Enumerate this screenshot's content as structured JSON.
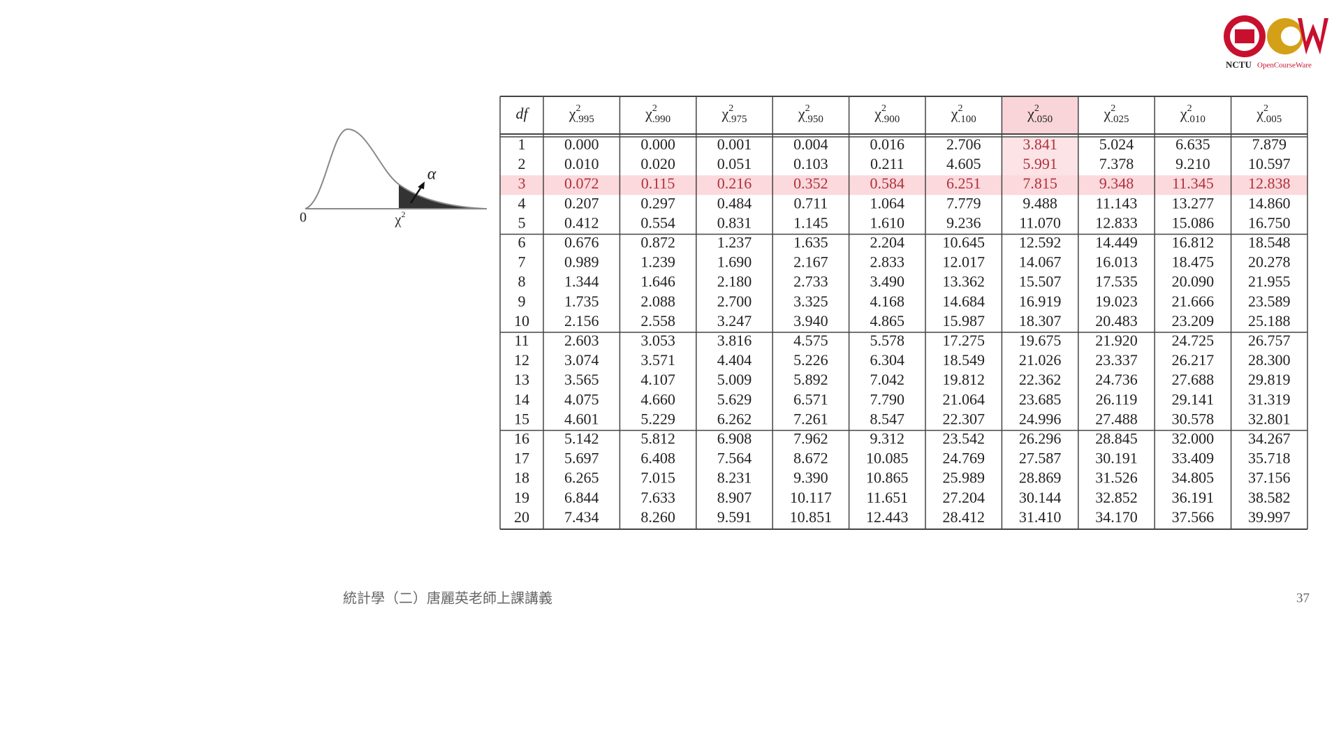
{
  "logo": {
    "institution": "NCTU",
    "program": "OpenCourseWare"
  },
  "figure": {
    "origin_label": "0",
    "chi_symbol": "χ",
    "chi_power": "2",
    "alpha_label": "α"
  },
  "table": {
    "df_header": "df",
    "chi_symbol": "χ",
    "chi_power": "2",
    "alphas": [
      ".995",
      ".990",
      ".975",
      ".950",
      ".900",
      ".100",
      ".050",
      ".025",
      ".010",
      ".005"
    ],
    "rows": [
      [
        "1",
        "0.000",
        "0.000",
        "0.001",
        "0.004",
        "0.016",
        "2.706",
        "3.841",
        "5.024",
        "6.635",
        "7.879"
      ],
      [
        "2",
        "0.010",
        "0.020",
        "0.051",
        "0.103",
        "0.211",
        "4.605",
        "5.991",
        "7.378",
        "9.210",
        "10.597"
      ],
      [
        "3",
        "0.072",
        "0.115",
        "0.216",
        "0.352",
        "0.584",
        "6.251",
        "7.815",
        "9.348",
        "11.345",
        "12.838"
      ],
      [
        "4",
        "0.207",
        "0.297",
        "0.484",
        "0.711",
        "1.064",
        "7.779",
        "9.488",
        "11.143",
        "13.277",
        "14.860"
      ],
      [
        "5",
        "0.412",
        "0.554",
        "0.831",
        "1.145",
        "1.610",
        "9.236",
        "11.070",
        "12.833",
        "15.086",
        "16.750"
      ],
      [
        "6",
        "0.676",
        "0.872",
        "1.237",
        "1.635",
        "2.204",
        "10.645",
        "12.592",
        "14.449",
        "16.812",
        "18.548"
      ],
      [
        "7",
        "0.989",
        "1.239",
        "1.690",
        "2.167",
        "2.833",
        "12.017",
        "14.067",
        "16.013",
        "18.475",
        "20.278"
      ],
      [
        "8",
        "1.344",
        "1.646",
        "2.180",
        "2.733",
        "3.490",
        "13.362",
        "15.507",
        "17.535",
        "20.090",
        "21.955"
      ],
      [
        "9",
        "1.735",
        "2.088",
        "2.700",
        "3.325",
        "4.168",
        "14.684",
        "16.919",
        "19.023",
        "21.666",
        "23.589"
      ],
      [
        "10",
        "2.156",
        "2.558",
        "3.247",
        "3.940",
        "4.865",
        "15.987",
        "18.307",
        "20.483",
        "23.209",
        "25.188"
      ],
      [
        "11",
        "2.603",
        "3.053",
        "3.816",
        "4.575",
        "5.578",
        "17.275",
        "19.675",
        "21.920",
        "24.725",
        "26.757"
      ],
      [
        "12",
        "3.074",
        "3.571",
        "4.404",
        "5.226",
        "6.304",
        "18.549",
        "21.026",
        "23.337",
        "26.217",
        "28.300"
      ],
      [
        "13",
        "3.565",
        "4.107",
        "5.009",
        "5.892",
        "7.042",
        "19.812",
        "22.362",
        "24.736",
        "27.688",
        "29.819"
      ],
      [
        "14",
        "4.075",
        "4.660",
        "5.629",
        "6.571",
        "7.790",
        "21.064",
        "23.685",
        "26.119",
        "29.141",
        "31.319"
      ],
      [
        "15",
        "4.601",
        "5.229",
        "6.262",
        "7.261",
        "8.547",
        "22.307",
        "24.996",
        "27.488",
        "30.578",
        "32.801"
      ],
      [
        "16",
        "5.142",
        "5.812",
        "6.908",
        "7.962",
        "9.312",
        "23.542",
        "26.296",
        "28.845",
        "32.000",
        "34.267"
      ],
      [
        "17",
        "5.697",
        "6.408",
        "7.564",
        "8.672",
        "10.085",
        "24.769",
        "27.587",
        "30.191",
        "33.409",
        "35.718"
      ],
      [
        "18",
        "6.265",
        "7.015",
        "8.231",
        "9.390",
        "10.865",
        "25.989",
        "28.869",
        "31.526",
        "34.805",
        "37.156"
      ],
      [
        "19",
        "6.844",
        "7.633",
        "8.907",
        "10.117",
        "11.651",
        "27.204",
        "30.144",
        "32.852",
        "36.191",
        "38.582"
      ],
      [
        "20",
        "7.434",
        "8.260",
        "9.591",
        "10.851",
        "12.443",
        "28.412",
        "31.410",
        "34.170",
        "37.566",
        "39.997"
      ]
    ]
  },
  "footer": {
    "course": "統計學（二）唐麗英老師上課講義",
    "page": "37"
  }
}
